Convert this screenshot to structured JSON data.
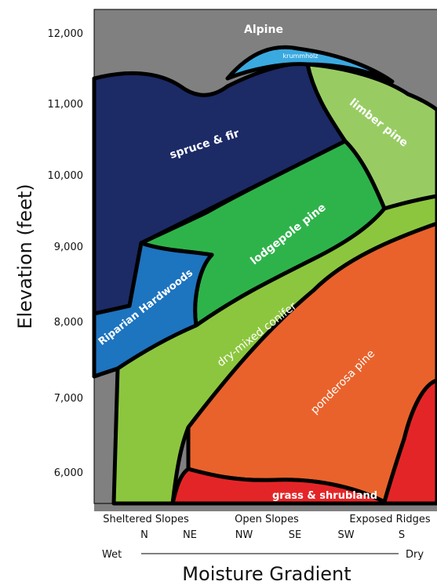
{
  "diagram": {
    "y_axis_title": "Elevation (feet)",
    "x_axis_title": "Moisture Gradient",
    "y_ticks": [
      "12,000",
      "11,000",
      "10,000",
      "9,000",
      "8,000",
      "7,000",
      "6,000"
    ],
    "gradient_ends": {
      "wet": "Wet",
      "dry": "Dry"
    },
    "slope_groups": [
      "Sheltered Slopes",
      "Open Slopes",
      "Exposed Ridges"
    ],
    "aspects": [
      "N",
      "NE",
      "NW",
      "SE",
      "SW",
      "S"
    ],
    "zones": {
      "alpine": {
        "label": "Alpine",
        "color": "#808080"
      },
      "krummholz": {
        "label": "krummholz",
        "color": "#3aa9e0"
      },
      "spruce_fir": {
        "label": "spruce & fir",
        "color": "#1c2a66"
      },
      "limber_pine": {
        "label": "limber pine",
        "color": "#98cc63"
      },
      "lodgepole_pine": {
        "label": "lodgepole pine",
        "color": "#2eb34a"
      },
      "riparian": {
        "label": "Riparian Hardwoods",
        "color": "#1d74bf"
      },
      "dry_mixed": {
        "label": "dry-mixed conifer",
        "color": "#8cc63e"
      },
      "ponderosa": {
        "label": "ponderosa pine",
        "color": "#e9622b"
      },
      "grass": {
        "label": "grass & shrubland",
        "color": "#e42527"
      }
    }
  }
}
